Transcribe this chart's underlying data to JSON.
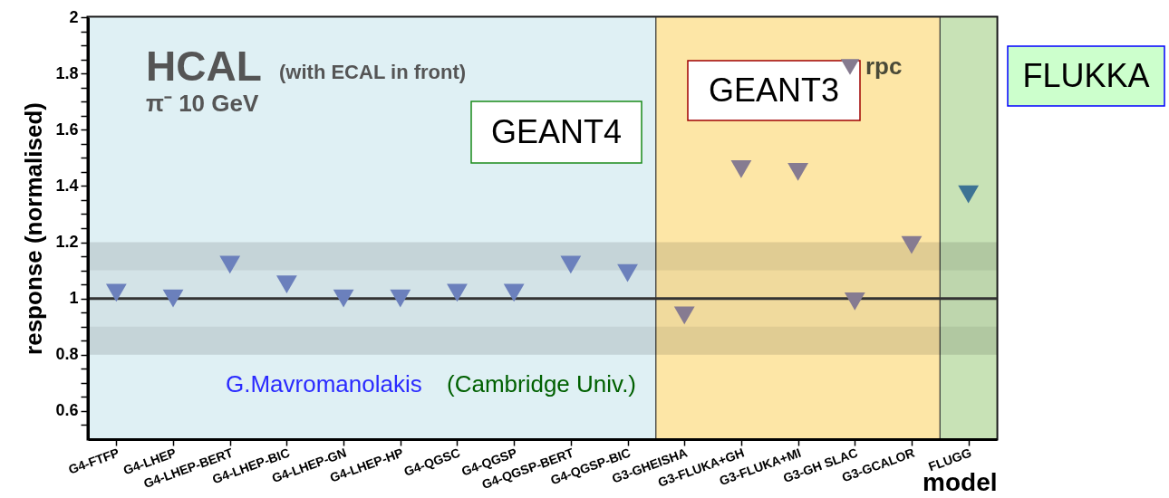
{
  "chart_data": {
    "type": "scatter",
    "ylabel": "response (normalised)",
    "xlabel": "model",
    "annotations": [
      "HCAL",
      "(with ECAL in front)",
      "π⁻ 10 GeV",
      "G.Mavromanolakis",
      "(Cambridge Univ.)"
    ],
    "categories": [
      "G4-FTFP",
      "G4-LHEP",
      "G4-LHEP-BERT",
      "G4-LHEP-BIC",
      "G4-LHEP-GN",
      "G4-LHEP-HP",
      "G4-QGSC",
      "G4-QGSP",
      "G4-QGSP-BERT",
      "G4-QGSP-BIC",
      "G3-GHEISHA",
      "G3-FLUKA+GH",
      "G3-FLUKA+MI",
      "G3-GH SLAC",
      "G3-GCALOR",
      "FLUGG"
    ],
    "series": [
      {
        "name": "rpc",
        "color": "#857a8f",
        "colors": [
          "#6b80bc",
          "#6b80bc",
          "#6b80bc",
          "#6b80bc",
          "#6b80bc",
          "#6b80bc",
          "#6b80bc",
          "#6b80bc",
          "#6b80bc",
          "#6b80bc",
          "#867b91",
          "#867b91",
          "#867b91",
          "#867b91",
          "#867b91",
          "#3d7394"
        ],
        "values": [
          1.02,
          1.0,
          1.12,
          1.05,
          1.0,
          1.0,
          1.02,
          1.02,
          1.12,
          1.09,
          0.94,
          1.46,
          1.45,
          0.99,
          1.19,
          1.37
        ]
      }
    ],
    "ylim": [
      0.5,
      2
    ],
    "yticks": [
      {
        "value": 0.55,
        "label": null
      },
      0.6,
      {
        "value": 0.65,
        "label": null
      },
      {
        "value": 0.7,
        "label": null
      },
      {
        "value": 0.75,
        "label": null
      },
      0.8,
      {
        "value": 0.85,
        "label": null
      },
      {
        "value": 0.9,
        "label": null
      },
      {
        "value": 0.95,
        "label": null
      },
      1,
      {
        "value": 1.05,
        "label": null
      },
      {
        "value": 1.1,
        "label": null
      },
      {
        "value": 1.15,
        "label": null
      },
      1.2,
      {
        "value": 1.25,
        "label": null
      },
      {
        "value": 1.3,
        "label": null
      },
      {
        "value": 1.35,
        "label": null
      },
      1.4,
      {
        "value": 1.45,
        "label": null
      },
      {
        "value": 1.5,
        "label": null
      },
      {
        "value": 1.55,
        "label": null
      },
      1.6,
      {
        "value": 1.65,
        "label": null
      },
      {
        "value": 1.7,
        "label": null
      },
      {
        "value": 1.75,
        "label": null
      },
      1.8,
      {
        "value": 1.85,
        "label": null
      },
      {
        "value": 1.9,
        "label": null
      },
      {
        "value": 1.95,
        "label": null
      },
      2
    ],
    "ref_lines": [
      {
        "axis": "y",
        "value": 1,
        "color": "#333333"
      }
    ],
    "bands": [
      {
        "axis": "x",
        "from": "G4-FTFP",
        "to": "G4-QGSP-BIC",
        "label": "GEANT4",
        "color": "#dff0f4"
      },
      {
        "axis": "x",
        "from": "G3-GHEISHA",
        "to": "G3-GCALOR",
        "label": "GEANT3",
        "color": "#fde6a6"
      },
      {
        "axis": "x",
        "from": "FLUGG",
        "to": "FLUGG",
        "label": "FLUKKA",
        "color": "#c8e2b6"
      },
      {
        "axis": "y",
        "from": 0.8,
        "to": 0.9,
        "color": "#e2e2e2"
      },
      {
        "axis": "y",
        "from": 0.9,
        "to": 1.1,
        "color": "#f2f2f2"
      },
      {
        "axis": "y",
        "from": 1.1,
        "to": 1.2,
        "color": "#e2e2e2"
      }
    ],
    "marker": "triangle",
    "legend": "top right",
    "grid": false
  }
}
